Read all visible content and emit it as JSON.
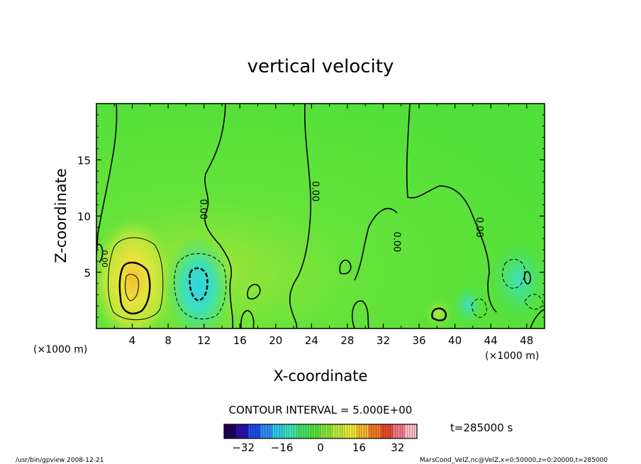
{
  "chart_data": {
    "type": "heatmap",
    "title": "vertical velocity",
    "xlabel": "X-coordinate",
    "ylabel": "Z-coordinate",
    "x_unit_left": "(×1000 m)",
    "x_unit_right": "(×1000 m)",
    "xlim": [
      0,
      50
    ],
    "ylim": [
      0,
      20
    ],
    "x_ticks": [
      4,
      8,
      12,
      16,
      20,
      24,
      28,
      32,
      36,
      40,
      44,
      48
    ],
    "y_ticks": [
      5,
      10,
      15
    ],
    "contour_interval_text": "CONTOUR INTERVAL = 5.000E+00",
    "time_text": "t=285000 s",
    "zero_contour_label": "0.00",
    "colorbar": {
      "min": -40,
      "max": 40,
      "ticks": [
        -32,
        -16,
        0,
        16,
        32
      ],
      "colors": [
        "#220055",
        "#2a13a8",
        "#1f4bea",
        "#2f8df2",
        "#33cce8",
        "#3de6b0",
        "#44e36a",
        "#55e33d",
        "#8ae63a",
        "#c6ea3c",
        "#f0e83b",
        "#f5b830",
        "#f07a28",
        "#e64a2a",
        "#f07a8a",
        "#ffc0cb"
      ]
    },
    "features": [
      {
        "type": "updraft",
        "x": 4,
        "z": 3,
        "peak": 15
      },
      {
        "type": "downdraft",
        "x": 11.5,
        "z": 4,
        "peak": -10
      },
      {
        "type": "updraft",
        "x": 38.5,
        "z": 1.2,
        "peak": 5
      },
      {
        "type": "downdraft",
        "x": 46,
        "z": 4.5,
        "peak": -5
      }
    ]
  },
  "footer": {
    "left": "/usr/bin/gpview   2008-12-21",
    "right": "MarsCond_VelZ.nc@VelZ,x=0:50000,z=0:20000,t=285000"
  }
}
